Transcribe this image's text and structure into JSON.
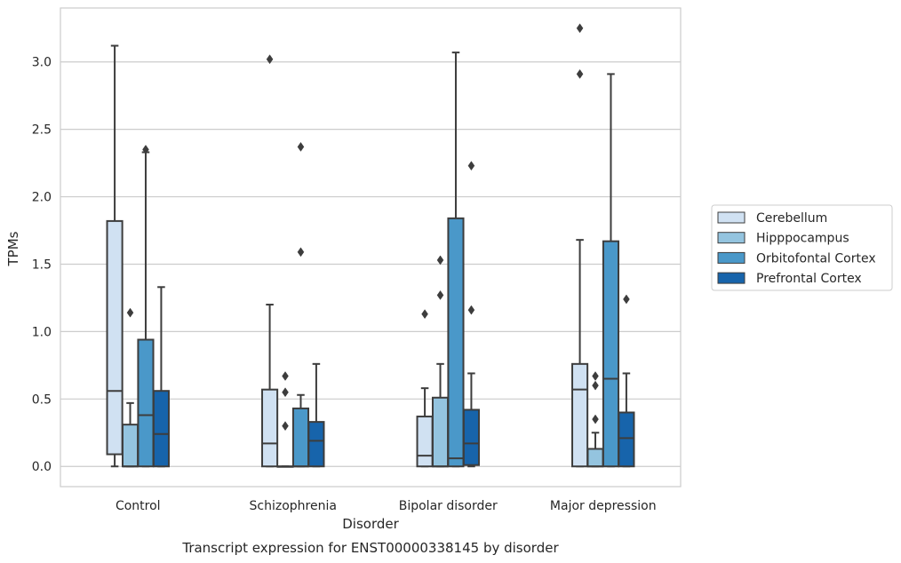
{
  "chart_data": {
    "type": "box",
    "title": "",
    "xlabel": "Disorder",
    "ylabel": "TPMs",
    "caption": "Transcript expression for ENST00000338145 by disorder",
    "ylim": [
      -0.15,
      3.4
    ],
    "yticks": [
      "0.0",
      "0.5",
      "1.0",
      "1.5",
      "2.0",
      "2.5",
      "3.0"
    ],
    "grid": true,
    "legend_position": "right",
    "categories": [
      "Control",
      "Schizophrenia",
      "Bipolar disorder",
      "Major depression"
    ],
    "series": [
      {
        "name": "Cerebellum",
        "color": "#d0e1f2",
        "boxes": [
          {
            "whisker_low": 0.0,
            "q1": 0.09,
            "median": 0.56,
            "q3": 1.82,
            "whisker_high": 3.12,
            "outliers": []
          },
          {
            "whisker_low": 0.0,
            "q1": 0.0,
            "median": 0.17,
            "q3": 0.57,
            "whisker_high": 1.2,
            "outliers": [
              3.02
            ]
          },
          {
            "whisker_low": 0.0,
            "q1": 0.0,
            "median": 0.08,
            "q3": 0.37,
            "whisker_high": 0.58,
            "outliers": [
              1.13
            ]
          },
          {
            "whisker_low": 0.0,
            "q1": 0.0,
            "median": 0.57,
            "q3": 0.76,
            "whisker_high": 1.68,
            "outliers": [
              2.91,
              3.25
            ]
          }
        ]
      },
      {
        "name": "Hipppocampus",
        "color": "#94c4df",
        "boxes": [
          {
            "whisker_low": 0.0,
            "q1": 0.0,
            "median": 0.0,
            "q3": 0.31,
            "whisker_high": 0.47,
            "outliers": [
              1.14
            ]
          },
          {
            "whisker_low": 0.0,
            "q1": 0.0,
            "median": 0.0,
            "q3": 0.0,
            "whisker_high": 0.0,
            "outliers": [
              0.3,
              0.55,
              0.67
            ]
          },
          {
            "whisker_low": 0.0,
            "q1": 0.0,
            "median": 0.0,
            "q3": 0.51,
            "whisker_high": 0.76,
            "outliers": [
              1.27,
              1.53
            ]
          },
          {
            "whisker_low": 0.0,
            "q1": 0.0,
            "median": 0.0,
            "q3": 0.13,
            "whisker_high": 0.25,
            "outliers": [
              0.35,
              0.6,
              0.67
            ]
          }
        ]
      },
      {
        "name": "Orbitofontal Cortex",
        "color": "#4a98c9",
        "boxes": [
          {
            "whisker_low": 0.0,
            "q1": 0.0,
            "median": 0.38,
            "q3": 0.94,
            "whisker_high": 2.33,
            "outliers": [
              2.35
            ]
          },
          {
            "whisker_low": 0.0,
            "q1": 0.0,
            "median": 0.0,
            "q3": 0.43,
            "whisker_high": 0.53,
            "outliers": [
              1.59,
              2.37
            ]
          },
          {
            "whisker_low": 0.0,
            "q1": 0.0,
            "median": 0.06,
            "q3": 1.84,
            "whisker_high": 3.07,
            "outliers": []
          },
          {
            "whisker_low": 0.0,
            "q1": 0.0,
            "median": 0.65,
            "q3": 1.67,
            "whisker_high": 2.91,
            "outliers": []
          }
        ]
      },
      {
        "name": "Prefrontal Cortex",
        "color": "#1764ab",
        "boxes": [
          {
            "whisker_low": 0.0,
            "q1": 0.0,
            "median": 0.24,
            "q3": 0.56,
            "whisker_high": 1.33,
            "outliers": []
          },
          {
            "whisker_low": 0.0,
            "q1": 0.0,
            "median": 0.19,
            "q3": 0.33,
            "whisker_high": 0.76,
            "outliers": []
          },
          {
            "whisker_low": 0.0,
            "q1": 0.01,
            "median": 0.17,
            "q3": 0.42,
            "whisker_high": 0.69,
            "outliers": [
              1.16,
              2.23
            ]
          },
          {
            "whisker_low": 0.0,
            "q1": 0.0,
            "median": 0.21,
            "q3": 0.4,
            "whisker_high": 0.69,
            "outliers": [
              1.24
            ]
          }
        ]
      }
    ]
  }
}
